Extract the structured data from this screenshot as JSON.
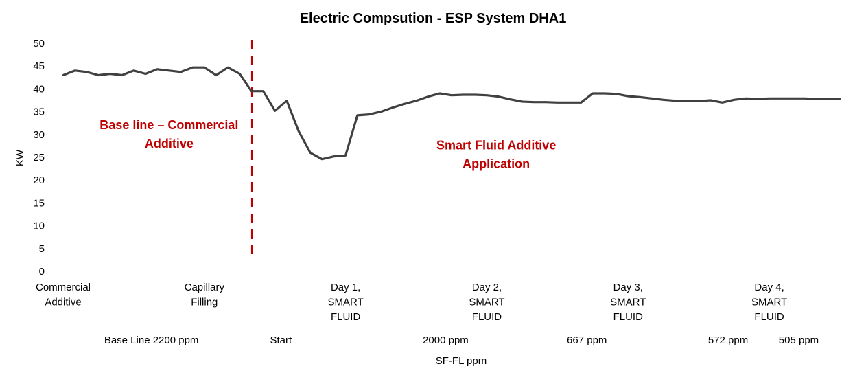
{
  "chart_data": {
    "type": "line",
    "title": "Electric Compsution - ESP System DHA1",
    "ylabel": "KW",
    "xlabel": "SF-FL  ppm",
    "ylim": [
      0,
      50
    ],
    "yticks": [
      "0",
      "5",
      "10",
      "15",
      "20",
      "25",
      "30",
      "35",
      "40",
      "45",
      "50"
    ],
    "grid": false,
    "x_tick_labels": [
      {
        "index": 0,
        "lines": [
          "Commercial",
          "Additive"
        ]
      },
      {
        "index": 12,
        "lines": [
          "Capillary",
          "Filling"
        ]
      },
      {
        "index": 24,
        "lines": [
          "Day 1,",
          "SMART",
          "FLUID"
        ]
      },
      {
        "index": 36,
        "lines": [
          "Day 2,",
          "SMART",
          "FLUID"
        ]
      },
      {
        "index": 48,
        "lines": [
          "Day 3,",
          "SMART",
          "FLUID"
        ]
      },
      {
        "index": 60,
        "lines": [
          "Day 4,",
          "SMART",
          "FLUID"
        ]
      }
    ],
    "phase_labels": [
      {
        "index": 7.5,
        "text": "Base Line 2200 ppm"
      },
      {
        "index": 18.5,
        "text": "Start"
      },
      {
        "index": 32.5,
        "text": "2000 ppm"
      },
      {
        "index": 44.5,
        "text": "667 ppm"
      },
      {
        "index": 56.5,
        "text": "572 ppm"
      },
      {
        "index": 62.5,
        "text": "505 ppm"
      }
    ],
    "divider_index": 16,
    "annotations": [
      {
        "lines": [
          "Base line – Commercial",
          "Additive"
        ],
        "index": 9,
        "y": 31.2
      },
      {
        "lines": [
          "Smart Fluid Additive",
          "Application"
        ],
        "index": 36.8,
        "y": 26.7
      }
    ],
    "series": [
      {
        "color": "#404040",
        "values": [
          43.0,
          44.0,
          43.7,
          43.0,
          43.3,
          43.0,
          44.0,
          43.3,
          44.3,
          44.0,
          43.7,
          44.7,
          44.7,
          43.0,
          44.7,
          43.3,
          39.5,
          39.5,
          35.2,
          37.4,
          30.8,
          26.0,
          24.6,
          25.2,
          25.4,
          34.2,
          34.4,
          35.0,
          35.9,
          36.7,
          37.4,
          38.3,
          39.0,
          38.6,
          38.7,
          38.7,
          38.6,
          38.3,
          37.7,
          37.2,
          37.1,
          37.1,
          37.0,
          37.0,
          37.0,
          39.0,
          39.0,
          38.9,
          38.4,
          38.2,
          37.9,
          37.6,
          37.4,
          37.4,
          37.3,
          37.5,
          37.0,
          37.6,
          37.9,
          37.8,
          37.9,
          37.9,
          37.9,
          37.9,
          37.8,
          37.8,
          37.8
        ]
      }
    ],
    "colors": {
      "line": "#404040",
      "divider": "#c00000",
      "annotation": "#c00000"
    }
  }
}
